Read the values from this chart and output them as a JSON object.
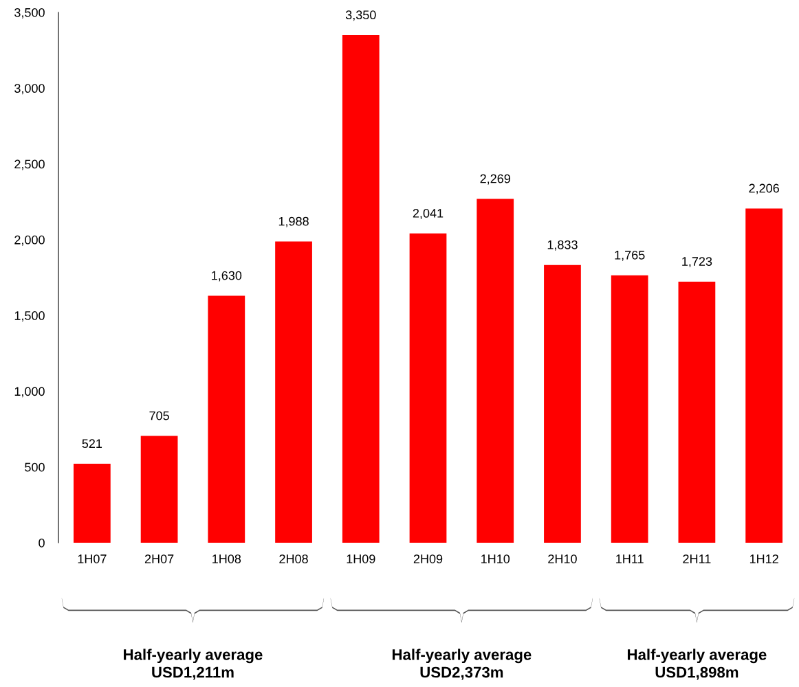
{
  "chart_data": {
    "type": "bar",
    "categories": [
      "1H07",
      "2H07",
      "1H08",
      "2H08",
      "1H09",
      "2H09",
      "1H10",
      "2H10",
      "1H11",
      "2H11",
      "1H12"
    ],
    "values": [
      521,
      705,
      1630,
      1988,
      3350,
      2041,
      2269,
      1833,
      1765,
      1723,
      2206
    ],
    "value_labels": [
      "521",
      "705",
      "1,630",
      "1,988",
      "3,350",
      "2,041",
      "2,269",
      "1,833",
      "1,765",
      "1,723",
      "2,206"
    ],
    "color": "#ff0000",
    "ylim": [
      0,
      3500
    ],
    "yticks": [
      0,
      500,
      {
        "value": 1000,
        "label": "1,000"
      },
      {
        "value": 1500,
        "label": "1,500"
      },
      {
        "value": 2000,
        "label": "2,000"
      },
      {
        "value": 2500,
        "label": "2,500"
      },
      {
        "value": 3000,
        "label": "3,000"
      },
      {
        "value": 3500,
        "label": "3,500"
      }
    ],
    "grid": false,
    "legend": false,
    "annotations": [
      "Half-yearly average\nUSD1,211m",
      "Half-yearly average\nUSD2,373m",
      "Half-yearly average\nUSD1,898m"
    ]
  }
}
